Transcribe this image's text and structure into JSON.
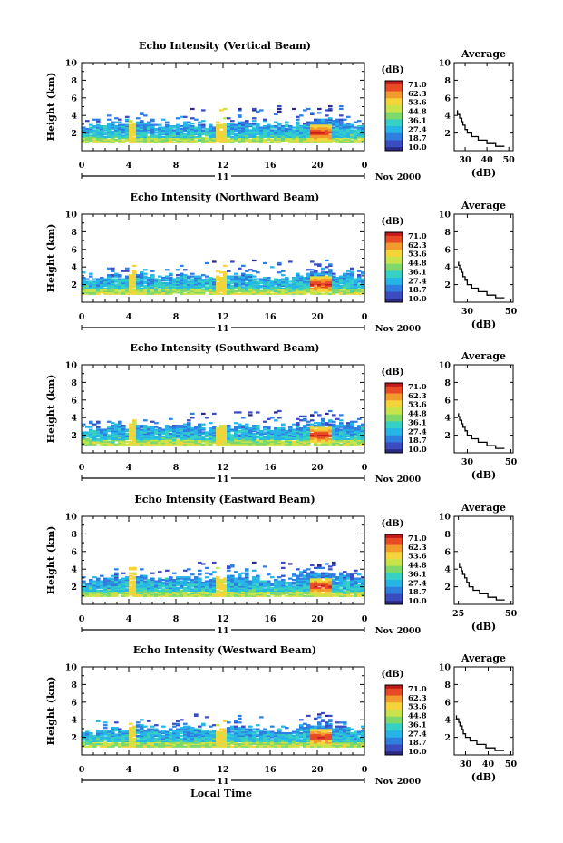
{
  "chart_data": [
    {
      "type": "heatmap",
      "title": "Echo Intensity (Vertical Beam)",
      "ylabel": "Height (km)",
      "xlim": [
        0,
        24
      ],
      "ylim": [
        0,
        10
      ],
      "x_ticks": [
        "0",
        "4",
        "8",
        "12",
        "16",
        "20",
        "0"
      ],
      "y_ticks": [
        "2",
        "4",
        "6",
        "8",
        "10"
      ],
      "date_label": "11",
      "month_year": "Nov 2000",
      "colorbar": {
        "unit": "(dB)",
        "values": [
          "71.0",
          "62.3",
          "53.6",
          "44.8",
          "36.1",
          "27.4",
          "18.7",
          "10.0"
        ]
      },
      "echo_top_km": [
        2.6,
        2.8,
        3.0,
        2.9,
        3.2,
        3.0,
        2.8,
        2.9,
        3.1,
        2.9,
        2.7,
        2.8,
        3.0,
        3.2,
        3.0,
        2.8,
        2.6,
        2.5,
        3.0,
        3.4,
        3.6,
        3.2,
        3.0,
        2.6
      ],
      "average": {
        "title": "Average",
        "xlabel": "(dB)",
        "x_ticks": [
          "30",
          "40",
          "50"
        ],
        "xlim": [
          25,
          52
        ],
        "profile": [
          [
            48,
            0.5
          ],
          [
            44,
            0.8
          ],
          [
            40,
            1.2
          ],
          [
            36,
            1.6
          ],
          [
            33,
            2.0
          ],
          [
            31,
            2.4
          ],
          [
            30,
            2.9
          ],
          [
            29,
            3.3
          ],
          [
            28.5,
            3.7
          ],
          [
            27.5,
            4.1
          ],
          [
            26.5,
            4.6
          ]
        ]
      }
    },
    {
      "type": "heatmap",
      "title": "Echo Intensity (Northward Beam)",
      "ylabel": "Height (km)",
      "xlim": [
        0,
        24
      ],
      "ylim": [
        0,
        10
      ],
      "x_ticks": [
        "0",
        "4",
        "8",
        "12",
        "16",
        "20",
        "0"
      ],
      "y_ticks": [
        "2",
        "4",
        "6",
        "8",
        "10"
      ],
      "date_label": "11",
      "month_year": "Nov 2000",
      "colorbar": {
        "unit": "(dB)",
        "values": [
          "71.0",
          "62.3",
          "53.6",
          "44.8",
          "36.1",
          "27.4",
          "18.7",
          "10.0"
        ]
      },
      "echo_top_km": [
        2.4,
        2.7,
        3.0,
        2.8,
        3.1,
        2.9,
        2.6,
        2.8,
        3.0,
        2.8,
        2.6,
        2.7,
        3.0,
        3.1,
        2.9,
        2.7,
        2.5,
        2.6,
        3.1,
        3.3,
        3.5,
        3.1,
        3.2,
        2.8
      ],
      "average": {
        "title": "Average",
        "xlabel": "(dB)",
        "x_ticks": [
          "30",
          "50"
        ],
        "xlim": [
          24,
          51
        ],
        "profile": [
          [
            47,
            0.5
          ],
          [
            43,
            0.8
          ],
          [
            39,
            1.2
          ],
          [
            35,
            1.6
          ],
          [
            32,
            2.0
          ],
          [
            30,
            2.5
          ],
          [
            29,
            2.9
          ],
          [
            28,
            3.4
          ],
          [
            27.5,
            3.8
          ],
          [
            26.5,
            4.2
          ],
          [
            26,
            4.6
          ]
        ]
      }
    },
    {
      "type": "heatmap",
      "title": "Echo Intensity (Southward Beam)",
      "ylabel": "Height (km)",
      "xlim": [
        0,
        24
      ],
      "ylim": [
        0,
        10
      ],
      "x_ticks": [
        "0",
        "4",
        "8",
        "12",
        "16",
        "20",
        "0"
      ],
      "y_ticks": [
        "2",
        "4",
        "6",
        "8",
        "10"
      ],
      "date_label": "11",
      "month_year": "Nov 2000",
      "colorbar": {
        "unit": "(dB)",
        "values": [
          "71.0",
          "62.3",
          "53.6",
          "44.8",
          "36.1",
          "27.4",
          "18.7",
          "10.0"
        ]
      },
      "echo_top_km": [
        2.5,
        2.8,
        3.1,
        2.9,
        3.2,
        3.0,
        2.7,
        2.9,
        3.1,
        2.9,
        2.6,
        2.8,
        3.0,
        3.2,
        3.0,
        2.7,
        2.6,
        2.7,
        3.2,
        3.4,
        3.6,
        3.2,
        3.3,
        2.9
      ],
      "average": {
        "title": "Average",
        "xlabel": "(dB)",
        "x_ticks": [
          "30",
          "50"
        ],
        "xlim": [
          24,
          51
        ],
        "profile": [
          [
            47,
            0.5
          ],
          [
            43,
            0.8
          ],
          [
            39,
            1.2
          ],
          [
            35,
            1.6
          ],
          [
            32,
            2.0
          ],
          [
            30,
            2.5
          ],
          [
            29,
            2.9
          ],
          [
            28,
            3.3
          ],
          [
            27.5,
            3.7
          ],
          [
            26.5,
            4.1
          ],
          [
            26,
            4.5
          ]
        ]
      }
    },
    {
      "type": "heatmap",
      "title": "Echo Intensity (Eastward Beam)",
      "ylabel": "Height (km)",
      "xlim": [
        0,
        24
      ],
      "ylim": [
        0,
        10
      ],
      "x_ticks": [
        "0",
        "4",
        "8",
        "12",
        "16",
        "20",
        "0"
      ],
      "y_ticks": [
        "2",
        "4",
        "6",
        "8",
        "10"
      ],
      "date_label": "11",
      "month_year": "Nov 2000",
      "colorbar": {
        "unit": "(dB)",
        "values": [
          "71.0",
          "62.3",
          "53.6",
          "44.8",
          "36.1",
          "27.4",
          "18.7",
          "10.0"
        ]
      },
      "echo_top_km": [
        2.5,
        2.8,
        3.1,
        2.9,
        3.2,
        3.0,
        2.8,
        3.0,
        3.2,
        3.0,
        2.7,
        2.9,
        3.1,
        3.2,
        3.0,
        2.8,
        2.6,
        2.7,
        3.3,
        3.5,
        3.6,
        3.3,
        3.2,
        2.9
      ],
      "average": {
        "title": "Average",
        "xlabel": "(dB)",
        "x_ticks": [
          "25",
          "50"
        ],
        "xlim": [
          23,
          51
        ],
        "profile": [
          [
            47,
            0.5
          ],
          [
            43,
            0.8
          ],
          [
            39,
            1.2
          ],
          [
            35,
            1.6
          ],
          [
            32,
            2.0
          ],
          [
            30,
            2.5
          ],
          [
            29,
            3.0
          ],
          [
            28,
            3.4
          ],
          [
            27,
            3.8
          ],
          [
            26.5,
            4.2
          ],
          [
            25.5,
            4.7
          ]
        ]
      }
    },
    {
      "type": "heatmap",
      "title": "Echo Intensity (Westward Beam)",
      "ylabel": "Height (km)",
      "xlabel": "Local Time",
      "xlim": [
        0,
        24
      ],
      "ylim": [
        0,
        10
      ],
      "x_ticks": [
        "0",
        "4",
        "8",
        "12",
        "16",
        "20",
        "0"
      ],
      "y_ticks": [
        "2",
        "4",
        "6",
        "8",
        "10"
      ],
      "date_label": "11",
      "month_year": "Nov 2000",
      "colorbar": {
        "unit": "(dB)",
        "values": [
          "71.0",
          "62.3",
          "53.6",
          "44.8",
          "36.1",
          "27.4",
          "18.7",
          "10.0"
        ]
      },
      "echo_top_km": [
        2.4,
        2.7,
        3.0,
        2.8,
        3.1,
        2.9,
        2.7,
        2.8,
        3.0,
        2.8,
        2.6,
        2.7,
        3.0,
        3.1,
        2.9,
        2.7,
        2.5,
        2.6,
        3.2,
        3.4,
        3.5,
        3.2,
        3.1,
        2.8
      ],
      "average": {
        "title": "Average",
        "xlabel": "(dB)",
        "x_ticks": [
          "30",
          "40",
          "50"
        ],
        "xlim": [
          25,
          51
        ],
        "profile": [
          [
            47,
            0.5
          ],
          [
            43,
            0.8
          ],
          [
            39,
            1.2
          ],
          [
            35,
            1.6
          ],
          [
            32,
            2.0
          ],
          [
            30,
            2.4
          ],
          [
            29,
            2.9
          ],
          [
            28.5,
            3.3
          ],
          [
            27.5,
            3.7
          ],
          [
            27,
            4.1
          ],
          [
            26,
            4.5
          ]
        ]
      }
    }
  ],
  "colors": {
    "colormap": [
      "#2b2a86",
      "#3b4cc0",
      "#2f7fe0",
      "#26b5e6",
      "#36d0c4",
      "#7fd86a",
      "#c9e34a",
      "#f5d33a",
      "#f39a2c",
      "#e84a27",
      "#c21a1a"
    ]
  }
}
